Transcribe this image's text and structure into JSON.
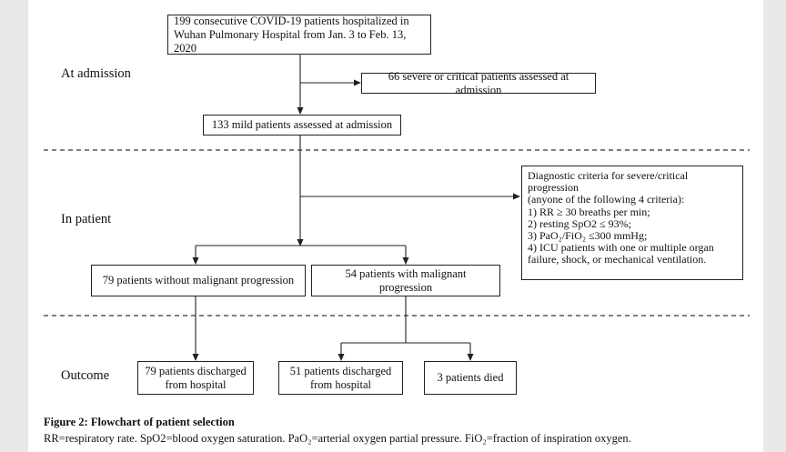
{
  "phases": {
    "admission": "At admission",
    "inpatient": "In patient",
    "outcome": "Outcome"
  },
  "boxes": {
    "total": "199 consecutive COVID-19 patients hospitalized in Wuhan Pulmonary Hospital from Jan. 3 to Feb. 13, 2020",
    "severe": "66 severe or critical patients assessed at admission",
    "mild": "133 mild patients assessed at admission",
    "criteria": "Diagnostic criteria for severe/critical progression\n(anyone of the following 4 criteria):\n1) RR ≥ 30 breaths per min;\n2) resting SpO2 ≤ 93%;\n3) PaO₂/FiO₂ ≤300 mmHg;\n4) ICU patients with one or multiple organ failure, shock, or mechanical ventilation.",
    "no_progression": "79 patients without malignant progression",
    "progression": "54 patients with malignant progression",
    "discharged_79": "79 patients discharged from hospital",
    "discharged_51": "51 patients discharged from hospital",
    "died": "3 patients died"
  },
  "caption": {
    "title": "Figure 2: Flowchart of patient selection",
    "body": "RR=respiratory rate. SpO2=blood oxygen saturation. PaO₂=arterial oxygen partial pressure. FiO₂=fraction of inspiration oxygen."
  },
  "colors": {
    "line": "#222222",
    "background": "#e9e9ea"
  }
}
